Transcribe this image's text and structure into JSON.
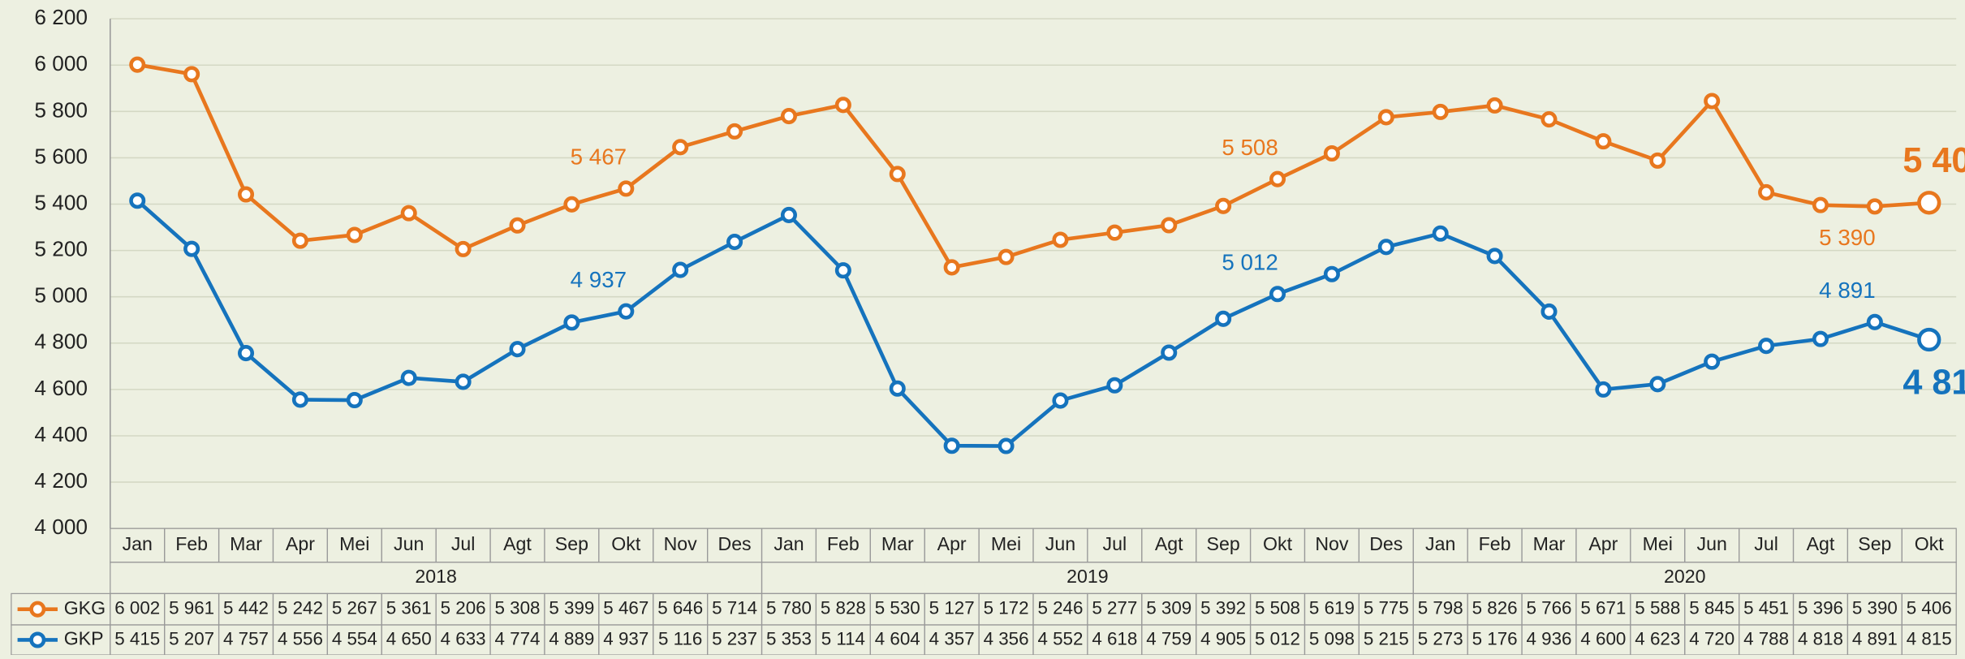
{
  "chart_data": {
    "type": "line",
    "categories": [
      "Jan",
      "Feb",
      "Mar",
      "Apr",
      "Mei",
      "Jun",
      "Jul",
      "Agt",
      "Sep",
      "Okt",
      "Nov",
      "Des",
      "Jan",
      "Feb",
      "Mar",
      "Apr",
      "Mei",
      "Jun",
      "Jul",
      "Agt",
      "Sep",
      "Okt",
      "Nov",
      "Des",
      "Jan",
      "Feb",
      "Mar",
      "Apr",
      "Mei",
      "Jun",
      "Jul",
      "Agt",
      "Sep",
      "Okt"
    ],
    "years": [
      "2018",
      "2019",
      "2020"
    ],
    "series": [
      {
        "name": "GKG",
        "color": "#e8771e",
        "values": [
          6002,
          5961,
          5442,
          5242,
          5267,
          5361,
          5206,
          5308,
          5399,
          5467,
          5646,
          5714,
          5780,
          5828,
          5530,
          5127,
          5172,
          5246,
          5277,
          5309,
          5392,
          5508,
          5619,
          5775,
          5798,
          5826,
          5766,
          5671,
          5588,
          5845,
          5451,
          5396,
          5390,
          5406
        ],
        "value_labels": [
          "6 002",
          "5 961",
          "5 442",
          "5 242",
          "5 267",
          "5 361",
          "5 206",
          "5 308",
          "5 399",
          "5 467",
          "5 646",
          "5 714",
          "5 780",
          "5 828",
          "5 530",
          "5 127",
          "5 172",
          "5 246",
          "5 277",
          "5 309",
          "5 392",
          "5 508",
          "5 619",
          "5 775",
          "5 798",
          "5 826",
          "5 766",
          "5 671",
          "5 588",
          "5 845",
          "5 451",
          "5 396",
          "5 390",
          "5 406"
        ]
      },
      {
        "name": "GKP",
        "color": "#1573bd",
        "values": [
          5415,
          5207,
          4757,
          4556,
          4554,
          4650,
          4633,
          4774,
          4889,
          4937,
          5116,
          5237,
          5353,
          5114,
          4604,
          4357,
          4356,
          4552,
          4618,
          4759,
          4905,
          5012,
          5098,
          5215,
          5273,
          5176,
          4936,
          4600,
          4623,
          4720,
          4788,
          4818,
          4891,
          4815
        ],
        "value_labels": [
          "5 415",
          "5 207",
          "4 757",
          "4 556",
          "4 554",
          "4 650",
          "4 633",
          "4 774",
          "4 889",
          "4 937",
          "5 116",
          "5 237",
          "5 353",
          "5 114",
          "4 604",
          "4 357",
          "4 356",
          "4 552",
          "4 618",
          "4 759",
          "4 905",
          "5 012",
          "5 098",
          "5 215",
          "5 273",
          "5 176",
          "4 936",
          "4 600",
          "4 623",
          "4 720",
          "4 788",
          "4 818",
          "4 891",
          "4 815"
        ]
      }
    ],
    "ylim": [
      4000,
      6200
    ],
    "yticks": [
      {
        "value": 4000,
        "label": "4 000"
      },
      {
        "value": 4200,
        "label": "4 200"
      },
      {
        "value": 4400,
        "label": "4 400"
      },
      {
        "value": 4600,
        "label": "4 600"
      },
      {
        "value": 4800,
        "label": "4 800"
      },
      {
        "value": 5000,
        "label": "5 000"
      },
      {
        "value": 5200,
        "label": "5 200"
      },
      {
        "value": 5400,
        "label": "5 400"
      },
      {
        "value": 5600,
        "label": "5 600"
      },
      {
        "value": 5800,
        "label": "5 800"
      },
      {
        "value": 6000,
        "label": "6 000"
      },
      {
        "value": 6200,
        "label": "6 200"
      }
    ],
    "grid": true
  }
}
